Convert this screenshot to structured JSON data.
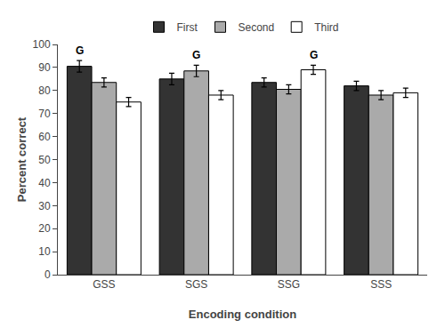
{
  "chart_data": {
    "type": "bar",
    "categories": [
      "GSS",
      "SGS",
      "SSG",
      "SSS"
    ],
    "series": [
      {
        "name": "First",
        "color": "#333333",
        "values": [
          90.5,
          85.0,
          83.5,
          82.0
        ],
        "errors": [
          2.5,
          2.5,
          2.0,
          2.0
        ]
      },
      {
        "name": "Second",
        "color": "#aaaaaa",
        "values": [
          83.5,
          88.5,
          80.5,
          78.0
        ],
        "errors": [
          2.0,
          2.5,
          2.0,
          2.0
        ]
      },
      {
        "name": "Third",
        "color": "#ffffff",
        "values": [
          75.0,
          78.0,
          89.0,
          79.0
        ],
        "errors": [
          2.0,
          2.0,
          2.0,
          2.0
        ]
      }
    ],
    "xlabel": "Encoding condition",
    "ylabel": "Percent correct",
    "ylim": [
      0,
      100
    ],
    "yticks": [
      0,
      10,
      20,
      30,
      40,
      50,
      60,
      70,
      80,
      90,
      100
    ],
    "grid": false,
    "legend": "top",
    "annotations": [
      {
        "text": "G",
        "x": 0,
        "series": "First"
      },
      {
        "text": "G",
        "x": 1,
        "series": "Second"
      },
      {
        "text": "G",
        "x": 2,
        "series": "Third"
      }
    ]
  }
}
